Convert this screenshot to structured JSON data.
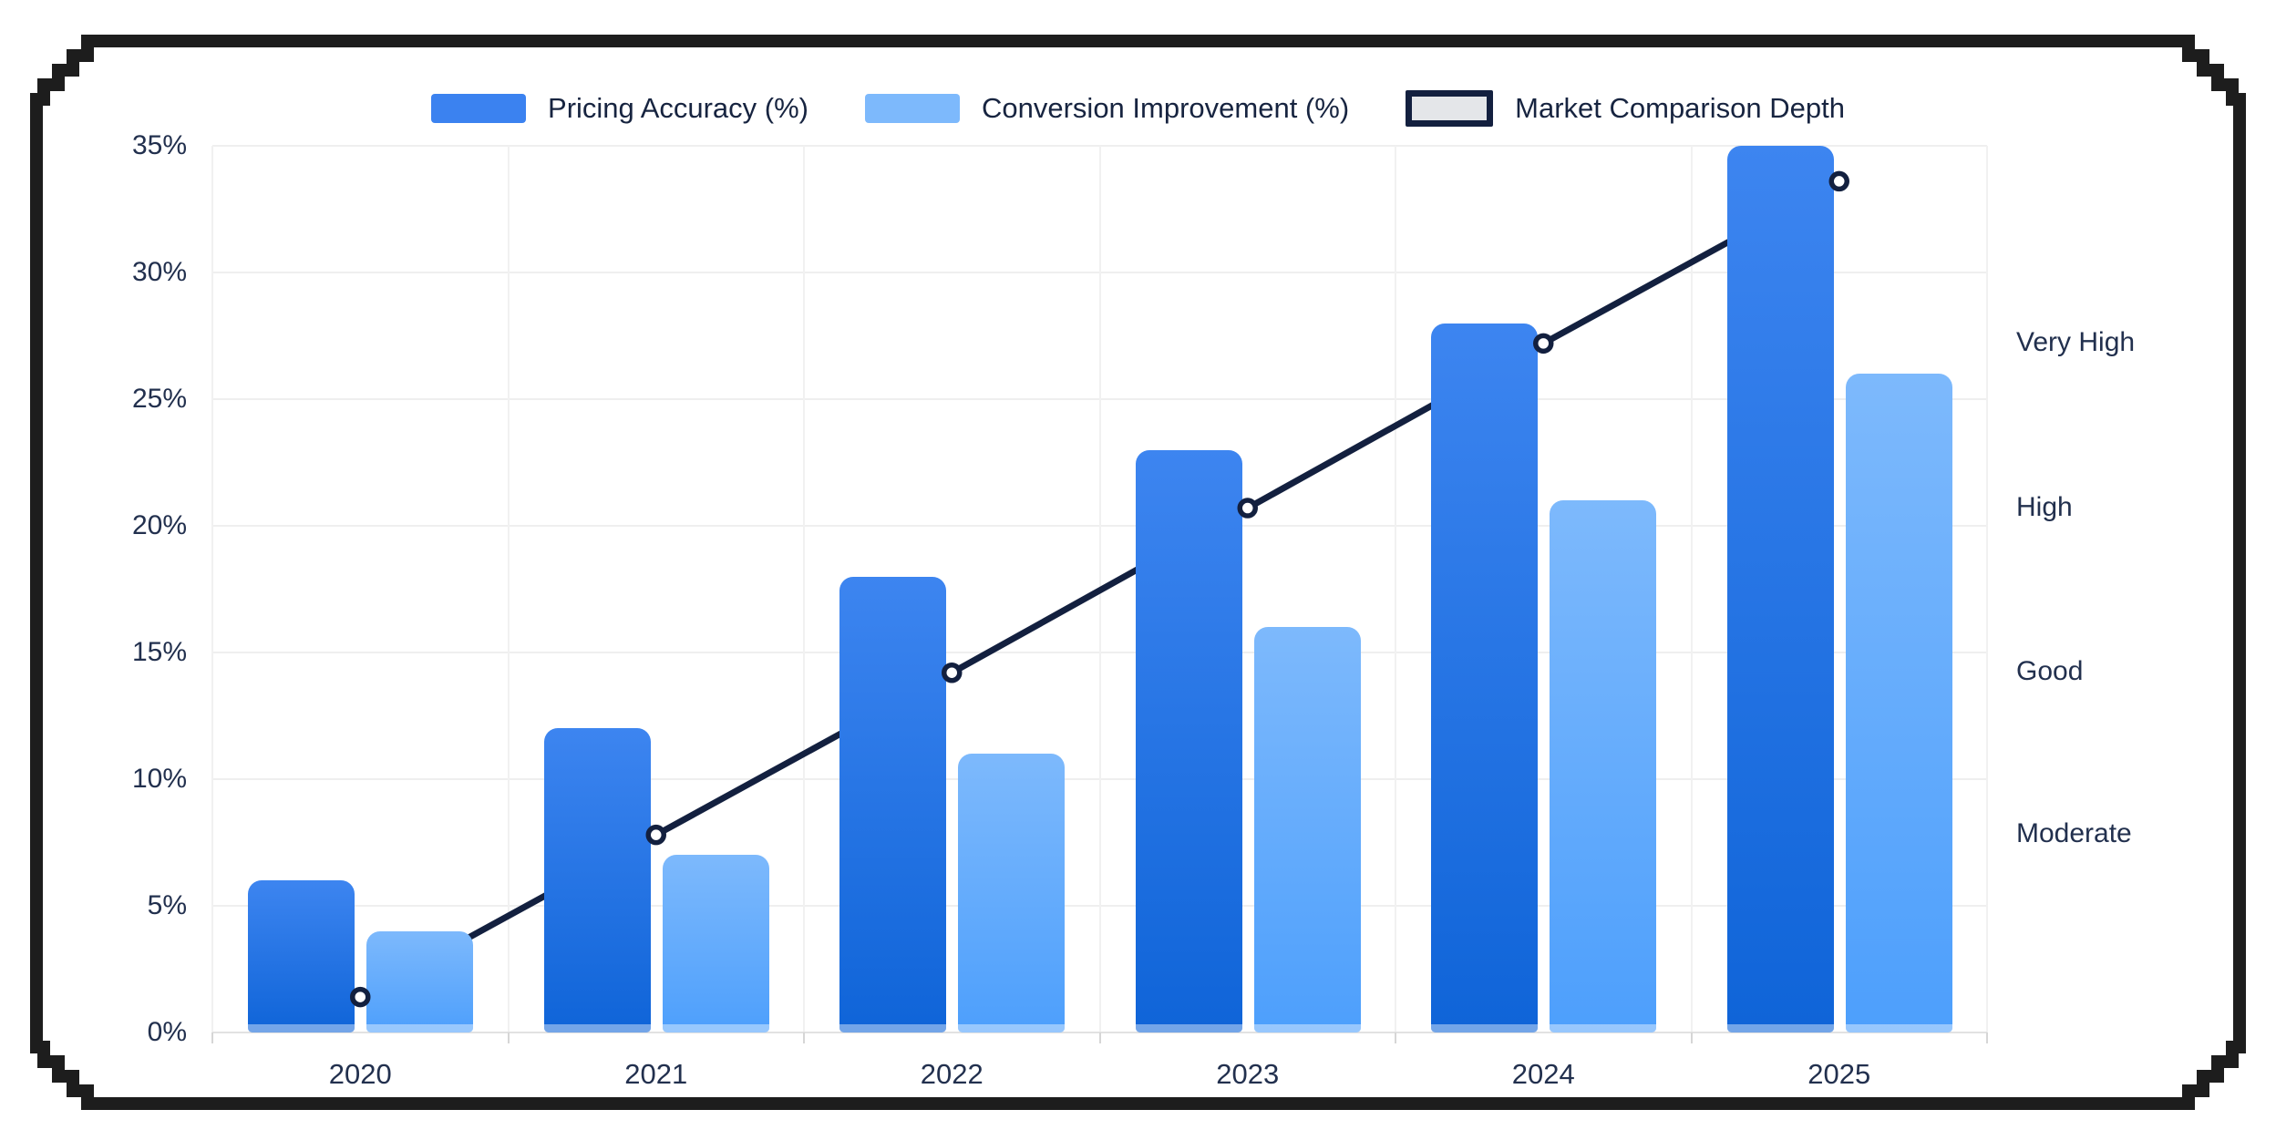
{
  "window": {
    "background": "#ffffff",
    "pixel_frame_color": "#1d1d1d"
  },
  "legend": {
    "position": "top-center",
    "items": [
      {
        "label": "Pricing Accuracy (%)",
        "swatch": "bar",
        "color": "#3b82f0"
      },
      {
        "label": "Conversion Improvement (%)",
        "swatch": "bar",
        "color": "#7db9fc"
      },
      {
        "label": "Market Comparison Depth",
        "swatch": "line-box",
        "fill": "#e4e6e9",
        "border": "#13203f"
      }
    ]
  },
  "chart_data": {
    "type": "bar",
    "combo": "grouped vertical bars + dark navy line with circular markers",
    "title": "",
    "categories": [
      "2020",
      "2021",
      "2022",
      "2023",
      "2024",
      "2025"
    ],
    "series": [
      {
        "name": "Pricing Accuracy (%)",
        "type": "bar",
        "axis": "left",
        "values": [
          6,
          12,
          18,
          23,
          28,
          35
        ],
        "color_top": "#3d85f0",
        "color_bottom": "#0f64d8"
      },
      {
        "name": "Conversion Improvement (%)",
        "type": "bar",
        "axis": "left",
        "values": [
          4,
          7,
          11,
          16,
          21,
          26
        ],
        "color_top": "#7db9fc",
        "color_bottom": "#4d9ffc"
      },
      {
        "name": "Market Comparison Depth",
        "type": "line",
        "axis": "right",
        "depth_levels": [
          1,
          2,
          3,
          4,
          5,
          6
        ],
        "left_axis_equivalent_pct": [
          1.4,
          7.8,
          14.2,
          20.7,
          27.2,
          33.6
        ],
        "line_color": "#13203f",
        "marker": "open-circle-white-fill"
      }
    ],
    "y_axis_left": {
      "min": 0,
      "max": 35,
      "tick_step": 5,
      "tick_labels": [
        "0%",
        "5%",
        "10%",
        "15%",
        "20%",
        "25%",
        "30%",
        "35%"
      ]
    },
    "y_axis_right": {
      "tick_labels": [
        "Moderate",
        "Good",
        "High",
        "Very High"
      ],
      "tick_levels": [
        2,
        3,
        4,
        5
      ]
    },
    "x_axis": {
      "tick_labels": [
        "2020",
        "2021",
        "2022",
        "2023",
        "2024",
        "2025"
      ]
    },
    "grid": {
      "horizontal": true,
      "vertical": true,
      "color": "#efefef"
    },
    "legend_position": "top"
  },
  "colors": {
    "axis_text": "#22304e",
    "legend_text": "#172440",
    "line": "#13203f",
    "grid": "#efefef",
    "baseline": "#e2e2e2"
  }
}
